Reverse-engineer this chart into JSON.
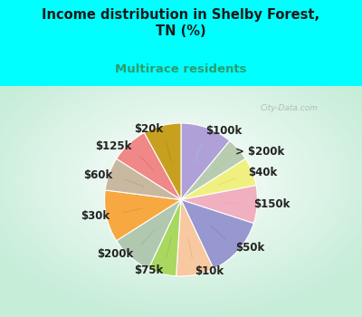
{
  "title": "Income distribution in Shelby Forest,\nTN (%)",
  "subtitle": "Multirace residents",
  "title_color": "#1a1a1a",
  "subtitle_color": "#2a9d6e",
  "bg_top_color": "#00ffff",
  "watermark": "City-Data.com",
  "labels": [
    "$100k",
    "> $200k",
    "$40k",
    "$150k",
    "$50k",
    "$10k",
    "$75k",
    "$200k",
    "$30k",
    "$60k",
    "$125k",
    "$20k"
  ],
  "values": [
    11,
    5,
    6,
    8,
    13,
    8,
    6,
    9,
    11,
    7,
    8,
    8
  ],
  "colors": [
    "#b0a0d8",
    "#b8ccb0",
    "#f0f080",
    "#f0b0c0",
    "#9898d0",
    "#f8c8a0",
    "#a8d860",
    "#b0c8b0",
    "#f8a840",
    "#c8b8a0",
    "#f08888",
    "#c8a020"
  ],
  "start_angle": 90,
  "label_fontsize": 8.5,
  "label_color": "#222222",
  "line_color_map": {
    "$100k": "#a0b8d8",
    "> $200k": "#b0c8a8",
    "$40k": "#e8e070",
    "$150k": "#f0a8b8",
    "$50k": "#8888c8",
    "$10k": "#e8b890",
    "$75k": "#98c858",
    "$200k": "#a0b8a0",
    "$30k": "#e89838",
    "$60k": "#b8a890",
    "$125k": "#e07878",
    "$20k": "#b89018"
  }
}
